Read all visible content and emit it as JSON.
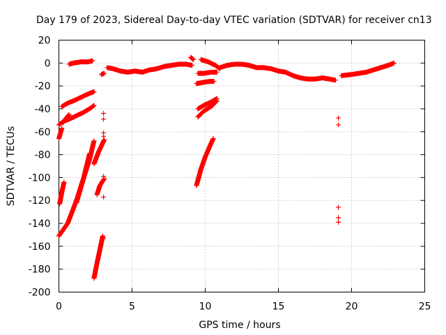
{
  "chart_data": {
    "type": "scatter",
    "title": "Day 179 of 2023, Sidereal Day-to-day VTEC variation (SDTVAR) for receiver cn13",
    "xlabel": "GPS time / hours",
    "ylabel": "SDTVAR / TECUs",
    "xlim": [
      0,
      25
    ],
    "ylim": [
      -200,
      20
    ],
    "xticks": [
      0,
      5,
      10,
      15,
      20,
      25
    ],
    "yticks": [
      20,
      0,
      -20,
      -40,
      -60,
      -80,
      -100,
      -120,
      -140,
      -160,
      -180,
      -200
    ],
    "grid": true,
    "marker": "+",
    "color": "#ff0000",
    "segments": [
      {
        "x": [
          0.7,
          1.0,
          1.5,
          2.0,
          2.3
        ],
        "y": [
          -1,
          0,
          1,
          1,
          2
        ]
      },
      {
        "x": [
          2.9,
          3.1
        ],
        "y": [
          -10,
          -9
        ]
      },
      {
        "x": [
          3.3,
          3.7,
          4.2,
          4.7,
          5.2,
          5.7,
          6.2,
          6.7,
          7.2,
          7.7,
          8.2,
          8.7,
          9.1
        ],
        "y": [
          -4,
          -5,
          -7,
          -8,
          -7,
          -8,
          -6,
          -5,
          -3,
          -2,
          -1,
          -1,
          -2
        ]
      },
      {
        "x": [
          9.0,
          9.2
        ],
        "y": [
          5,
          3
        ]
      },
      {
        "x": [
          9.7,
          10.2,
          10.7,
          11.0
        ],
        "y": [
          3,
          1,
          -2,
          -5
        ]
      },
      {
        "x": [
          11.0,
          11.5,
          12.0,
          12.5,
          13.0,
          13.5,
          14.0,
          14.5,
          15.0,
          15.5,
          16.0,
          16.5,
          17.0,
          17.5,
          18.0,
          18.5,
          18.9
        ],
        "y": [
          -4,
          -2,
          -1,
          -1,
          -2,
          -4,
          -4,
          -5,
          -7,
          -8,
          -11,
          -13,
          -14,
          -14,
          -13,
          -14,
          -15
        ]
      },
      {
        "x": [
          19.3,
          20.0,
          20.5,
          21.0,
          21.5,
          22.0,
          22.5,
          22.9
        ],
        "y": [
          -11,
          -10,
          -9,
          -8,
          -6,
          -4,
          -2,
          0
        ]
      },
      {
        "x": [
          9.4,
          9.8,
          10.3,
          10.6
        ],
        "y": [
          -18,
          -17,
          -16,
          -16
        ]
      },
      {
        "x": [
          9.5,
          9.9,
          10.4,
          10.8
        ],
        "y": [
          -9,
          -9,
          -8,
          -8
        ]
      },
      {
        "x": [
          0.2,
          0.6,
          1.0,
          1.5,
          2.0,
          2.4
        ],
        "y": [
          -38,
          -35,
          -33,
          -30,
          -27,
          -25
        ]
      },
      {
        "x": [
          0.0,
          0.3,
          0.7,
          1.2,
          1.7,
          2.2,
          2.4
        ],
        "y": [
          -54,
          -51,
          -49,
          -46,
          -43,
          -39,
          -37
        ]
      },
      {
        "x": [
          0.3,
          0.5,
          0.7
        ],
        "y": [
          -52,
          -48,
          -45
        ]
      },
      {
        "x": [
          0.0,
          0.2
        ],
        "y": [
          -66,
          -57
        ]
      },
      {
        "x": [
          0.05,
          0.2,
          0.35
        ],
        "y": [
          -123,
          -113,
          -104
        ]
      },
      {
        "x": [
          0.0,
          0.6,
          1.2,
          1.7,
          2.1
        ],
        "y": [
          -151,
          -140,
          -120,
          -100,
          -79
        ]
      },
      {
        "x": [
          1.2,
          1.7,
          2.1,
          2.4
        ],
        "y": [
          -122,
          -100,
          -84,
          -68
        ]
      },
      {
        "x": [
          2.4,
          2.7,
          3.1
        ],
        "y": [
          -88,
          -78,
          -67
        ]
      },
      {
        "x": [
          2.6,
          2.8,
          3.1
        ],
        "y": [
          -115,
          -107,
          -101
        ]
      },
      {
        "x": [
          2.4,
          2.6,
          2.8,
          3.0
        ],
        "y": [
          -188,
          -175,
          -163,
          -151
        ]
      },
      {
        "x": [
          3.05,
          3.05,
          3.05,
          3.05,
          3.05,
          3.05,
          3.05
        ],
        "y": [
          -44,
          -49,
          -61,
          -64,
          -99,
          -117,
          -153
        ]
      },
      {
        "x": [
          9.5,
          9.9,
          10.4,
          10.8
        ],
        "y": [
          -47,
          -42,
          -38,
          -33
        ]
      },
      {
        "x": [
          9.5,
          9.9,
          10.4,
          10.8
        ],
        "y": [
          -40,
          -37,
          -34,
          -31
        ]
      },
      {
        "x": [
          9.4,
          9.7,
          10.0,
          10.3,
          10.55
        ],
        "y": [
          -107,
          -93,
          -82,
          -73,
          -66
        ]
      },
      {
        "x": [
          19.1,
          19.1,
          19.1,
          19.1,
          19.1
        ],
        "y": [
          -48,
          -54,
          -126,
          -135,
          -139
        ]
      }
    ]
  }
}
